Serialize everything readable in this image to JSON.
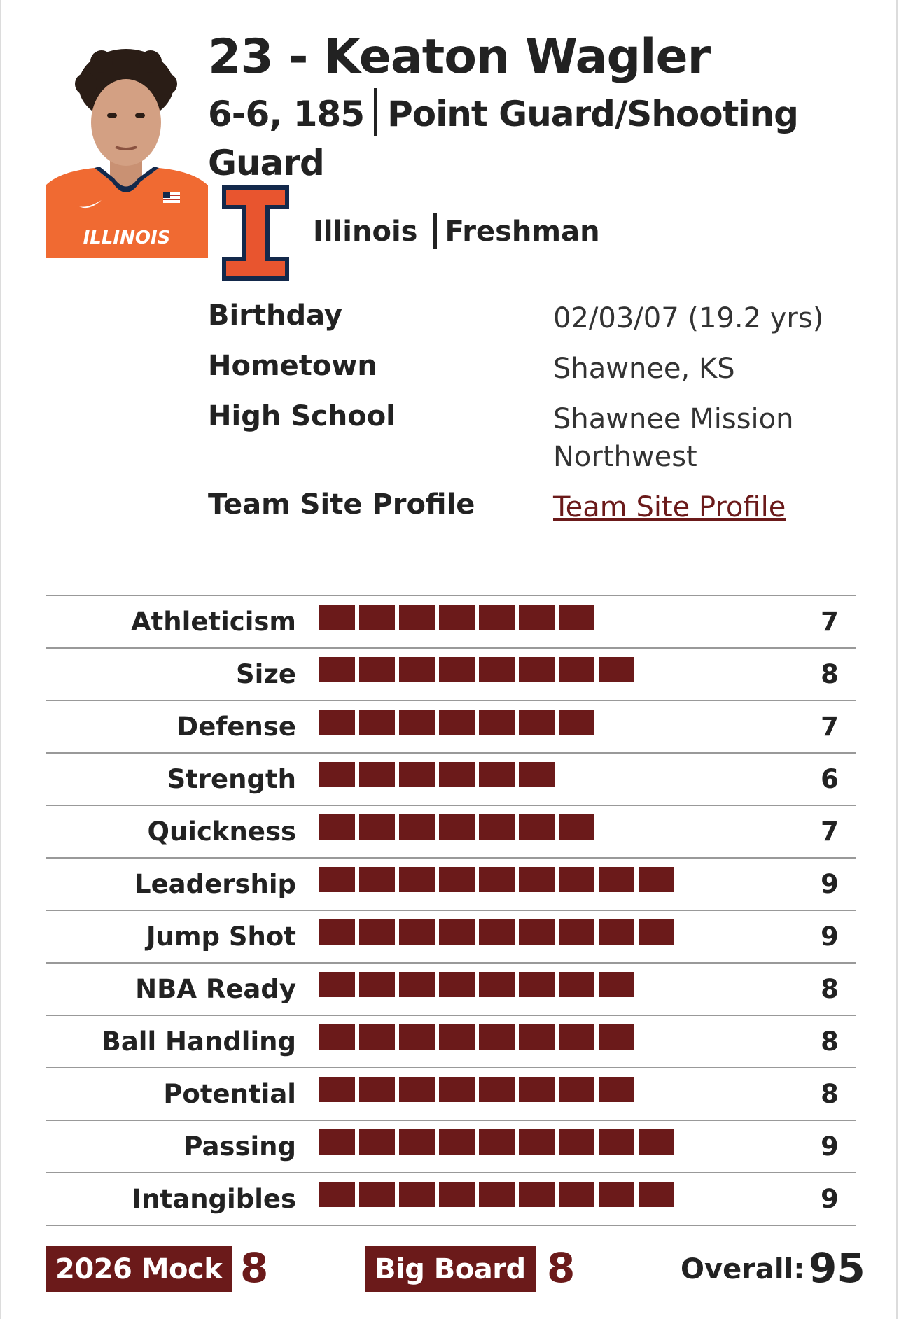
{
  "player": {
    "title": "23 - Keaton Wagler",
    "height_weight": "6-6, 185",
    "position": "Point Guard/Shooting Guard",
    "school": "Illinois",
    "class": "Freshman",
    "jersey_text": "ILLINOIS"
  },
  "info": [
    {
      "label": "Birthday",
      "value": "02/03/07 (19.2 yrs)"
    },
    {
      "label": "Hometown",
      "value": "Shawnee, KS"
    },
    {
      "label": "High School",
      "value": "Shawnee Mission Northwest"
    },
    {
      "label": "Team Site Profile",
      "value": "Team Site Profile",
      "link": true
    }
  ],
  "ratings": [
    {
      "label": "Athleticism",
      "value": 7
    },
    {
      "label": "Size",
      "value": 8
    },
    {
      "label": "Defense",
      "value": 7
    },
    {
      "label": "Strength",
      "value": 6
    },
    {
      "label": "Quickness",
      "value": 7
    },
    {
      "label": "Leadership",
      "value": 9
    },
    {
      "label": "Jump Shot",
      "value": 9
    },
    {
      "label": "NBA Ready",
      "value": 8
    },
    {
      "label": "Ball Handling",
      "value": 8
    },
    {
      "label": "Potential",
      "value": 8
    },
    {
      "label": "Passing",
      "value": 9
    },
    {
      "label": "Intangibles",
      "value": 9
    }
  ],
  "footer": {
    "mock_label": "2026 Mock",
    "mock_value": "8",
    "board_label": "Big Board",
    "board_value": "8",
    "overall_label": "Overall:",
    "overall_value": "95"
  },
  "colors": {
    "accent": "#6b1a1a",
    "illinois_orange": "#e8552f",
    "illinois_navy": "#13294b"
  }
}
